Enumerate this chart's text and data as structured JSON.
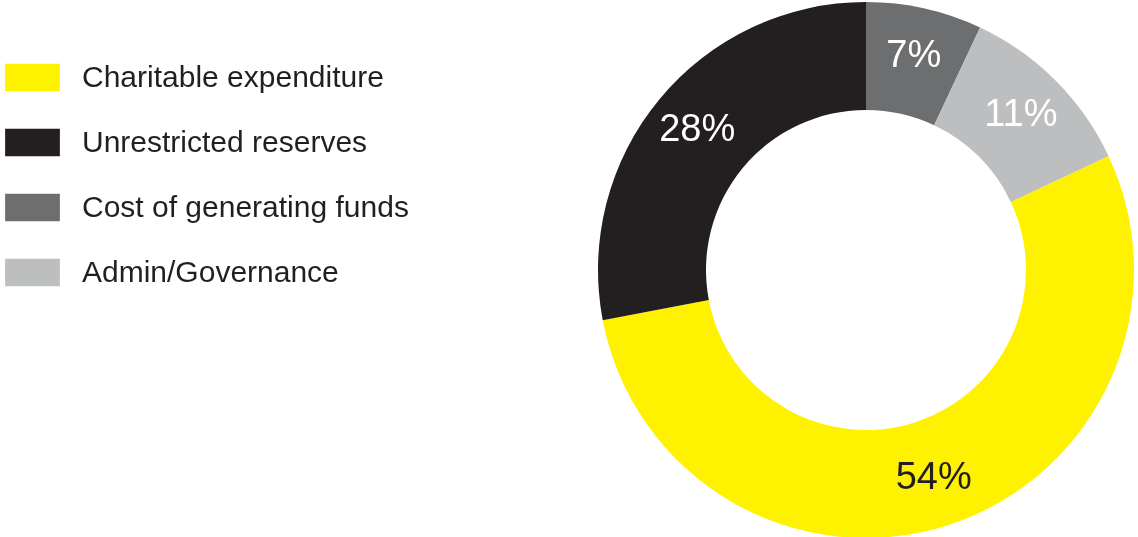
{
  "chart_data": {
    "type": "donut",
    "categories": [
      "Charitable expenditure",
      "Unrestricted reserves",
      "Cost of generating funds",
      "Admin/Governance"
    ],
    "values": [
      54,
      28,
      7,
      11
    ],
    "colors": [
      "#fff200",
      "#231f20",
      "#6d6e70",
      "#bcbec0"
    ],
    "value_labels": [
      "54%",
      "28%",
      "7%",
      "11%"
    ],
    "legend": "top left"
  }
}
